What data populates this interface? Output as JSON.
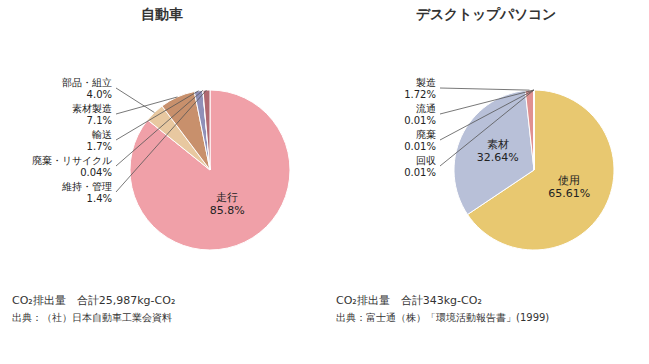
{
  "chart_data": [
    {
      "type": "pie",
      "title": "自動車",
      "categories": [
        "走行",
        "部品・組立",
        "素材製造",
        "輸送",
        "廃棄・リサイクル",
        "維持・管理"
      ],
      "values": [
        85.8,
        4.0,
        7.1,
        1.7,
        0.04,
        1.4
      ],
      "value_labels": [
        "85.8%",
        "4.0%",
        "7.1%",
        "1.7%",
        "0.04%",
        "1.4%"
      ],
      "colors": [
        "#f0a0a8",
        "#e8c8a0",
        "#c8906c",
        "#9090b8",
        "#7878a8",
        "#b06870"
      ],
      "data_labels": true,
      "annotations": [
        "CO₂排出量　合計25,987kg-CO₂",
        "出典：（社）日本自動車工業会資料"
      ]
    },
    {
      "type": "pie",
      "title": "デスクトップパソコン",
      "categories": [
        "使用",
        "素材",
        "製造",
        "流通",
        "廃棄",
        "回収"
      ],
      "values": [
        65.61,
        32.64,
        1.72,
        0.01,
        0.01,
        0.01
      ],
      "value_labels": [
        "65.61%",
        "32.64%",
        "1.72%",
        "0.01%",
        "0.01%",
        "0.01%"
      ],
      "colors": [
        "#e8c870",
        "#b8c0d8",
        "#e09090",
        "#909090",
        "#c8c8c8",
        "#d4d0c8"
      ],
      "data_labels": true,
      "annotations": [
        "CO₂排出量　合計343kg-CO₂",
        "出典：富士通（株）「環境活動報告書」(1999)"
      ]
    }
  ]
}
